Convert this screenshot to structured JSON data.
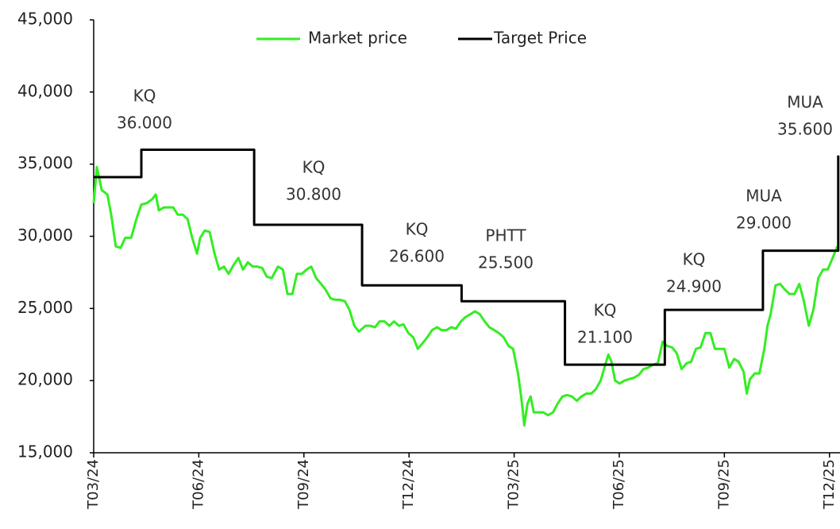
{
  "chart_data": {
    "type": "line",
    "xlim": [
      0,
      21.3
    ],
    "xticks": [
      {
        "value": 0,
        "label": "T03/24"
      },
      {
        "value": 3,
        "label": "T06/24"
      },
      {
        "value": 6,
        "label": "T09/24"
      },
      {
        "value": 9,
        "label": "T12/24"
      },
      {
        "value": 12,
        "label": "T03/25"
      },
      {
        "value": 15,
        "label": "T06/25"
      },
      {
        "value": 18,
        "label": "T09/25"
      },
      {
        "value": 21,
        "label": "T12/25"
      }
    ],
    "ylim": [
      15000,
      45000
    ],
    "yticks": [
      {
        "value": 15000,
        "label": "15,000"
      },
      {
        "value": 20000,
        "label": "20,000"
      },
      {
        "value": 25000,
        "label": "25,000"
      },
      {
        "value": 30000,
        "label": "30,000"
      },
      {
        "value": 35000,
        "label": "35,000"
      },
      {
        "value": 40000,
        "label": "40,000"
      },
      {
        "value": 45000,
        "label": "45,000"
      }
    ],
    "legend": "top",
    "series": [
      {
        "name": "Market price",
        "color": "#33ee22",
        "x": [
          0,
          0.09,
          0.23,
          0.39,
          0.5,
          0.63,
          0.77,
          0.9,
          1.07,
          1.22,
          1.36,
          1.52,
          1.68,
          1.77,
          1.86,
          2,
          2.13,
          2.27,
          2.4,
          2.54,
          2.68,
          2.81,
          2.95,
          3.04,
          3.17,
          3.31,
          3.45,
          3.58,
          3.72,
          3.85,
          3.99,
          4.13,
          4.26,
          4.4,
          4.54,
          4.67,
          4.81,
          4.94,
          5.08,
          5.26,
          5.4,
          5.53,
          5.67,
          5.8,
          5.94,
          6.08,
          6.21,
          6.35,
          6.49,
          6.62,
          6.76,
          6.89,
          7.03,
          7.17,
          7.3,
          7.44,
          7.57,
          7.76,
          7.89,
          8.03,
          8.16,
          8.3,
          8.44,
          8.57,
          8.71,
          8.84,
          8.98,
          9.12,
          9.25,
          9.39,
          9.52,
          9.66,
          9.8,
          9.93,
          10.07,
          10.2,
          10.34,
          10.48,
          10.61,
          10.75,
          10.88,
          11.02,
          11.16,
          11.29,
          11.43,
          11.56,
          11.7,
          11.84,
          11.97,
          12.11,
          12.2,
          12.29,
          12.38,
          12.47,
          12.56,
          12.7,
          12.83,
          12.97,
          13.11,
          13.24,
          13.38,
          13.51,
          13.65,
          13.79,
          13.92,
          14.06,
          14.2,
          14.33,
          14.47,
          14.6,
          14.69,
          14.78,
          14.88,
          15.01,
          15.15,
          15.28,
          15.42,
          15.56,
          15.69,
          15.83,
          15.96,
          16.1,
          16.24,
          16.37,
          16.51,
          16.64,
          16.78,
          16.92,
          17.05,
          17.19,
          17.32,
          17.46,
          17.6,
          17.73,
          17.87,
          18,
          18.14,
          18.28,
          18.41,
          18.55,
          18.64,
          18.73,
          18.87,
          19,
          19.14,
          19.23,
          19.32,
          19.46,
          19.59,
          19.73,
          19.86,
          20,
          20.14,
          20.27,
          20.41,
          20.54,
          20.68,
          20.82,
          20.95,
          21.09,
          21.22
        ],
        "values": [
          32300,
          34800,
          33200,
          32900,
          31500,
          29300,
          29200,
          29900,
          29900,
          31200,
          32200,
          32300,
          32600,
          32900,
          31800,
          32000,
          32000,
          32000,
          31500,
          31500,
          31200,
          29900,
          28800,
          29900,
          30400,
          30300,
          28800,
          27700,
          27900,
          27400,
          28000,
          28500,
          27700,
          28200,
          27900,
          27900,
          27800,
          27200,
          27100,
          27900,
          27700,
          26000,
          26000,
          27400,
          27400,
          27700,
          27900,
          27100,
          26700,
          26300,
          25700,
          25600,
          25600,
          25500,
          24900,
          23800,
          23400,
          23800,
          23800,
          23700,
          24100,
          24100,
          23800,
          24100,
          23800,
          23900,
          23300,
          23000,
          22200,
          22600,
          23000,
          23500,
          23700,
          23500,
          23500,
          23700,
          23600,
          24100,
          24400,
          24600,
          24800,
          24600,
          24100,
          23700,
          23500,
          23300,
          23000,
          22400,
          22200,
          20500,
          18900,
          16900,
          18400,
          18900,
          17800,
          17800,
          17800,
          17600,
          17800,
          18400,
          18900,
          19000,
          18900,
          18600,
          18900,
          19100,
          19100,
          19400,
          20000,
          21100,
          21800,
          21300,
          20000,
          19800,
          20000,
          20100,
          20200,
          20400,
          20800,
          20900,
          21100,
          21200,
          22700,
          22400,
          22300,
          21900,
          20800,
          21200,
          21300,
          22200,
          22300,
          23300,
          23300,
          22200,
          22200,
          22200,
          20900,
          21500,
          21300,
          20600,
          19100,
          20100,
          20500,
          20500,
          22200,
          23800,
          24600,
          26600,
          26700,
          26300,
          26000,
          26000,
          26700,
          25500,
          23800,
          24900,
          27100,
          27700,
          27700,
          28500,
          29300
        ]
      },
      {
        "name": "Target Price",
        "color": "#000000",
        "step": true,
        "x": [
          0,
          1.36,
          4.58,
          7.66,
          10.5,
          13.45,
          16.3,
          19.1,
          21.25
        ],
        "values": [
          34100,
          36000,
          30800,
          26600,
          25500,
          21100,
          24900,
          29000,
          35600
        ]
      }
    ],
    "annotations": [
      [
        "KQ",
        "36.000"
      ],
      [
        "KQ",
        "30.800"
      ],
      [
        "KQ",
        "26.600"
      ],
      [
        "PHTT",
        "25.500"
      ],
      [
        "KQ",
        "21.100"
      ],
      [
        "KQ",
        "24.900"
      ],
      [
        "MUA",
        "29.000"
      ],
      [
        "MUA",
        "35.600"
      ]
    ]
  }
}
